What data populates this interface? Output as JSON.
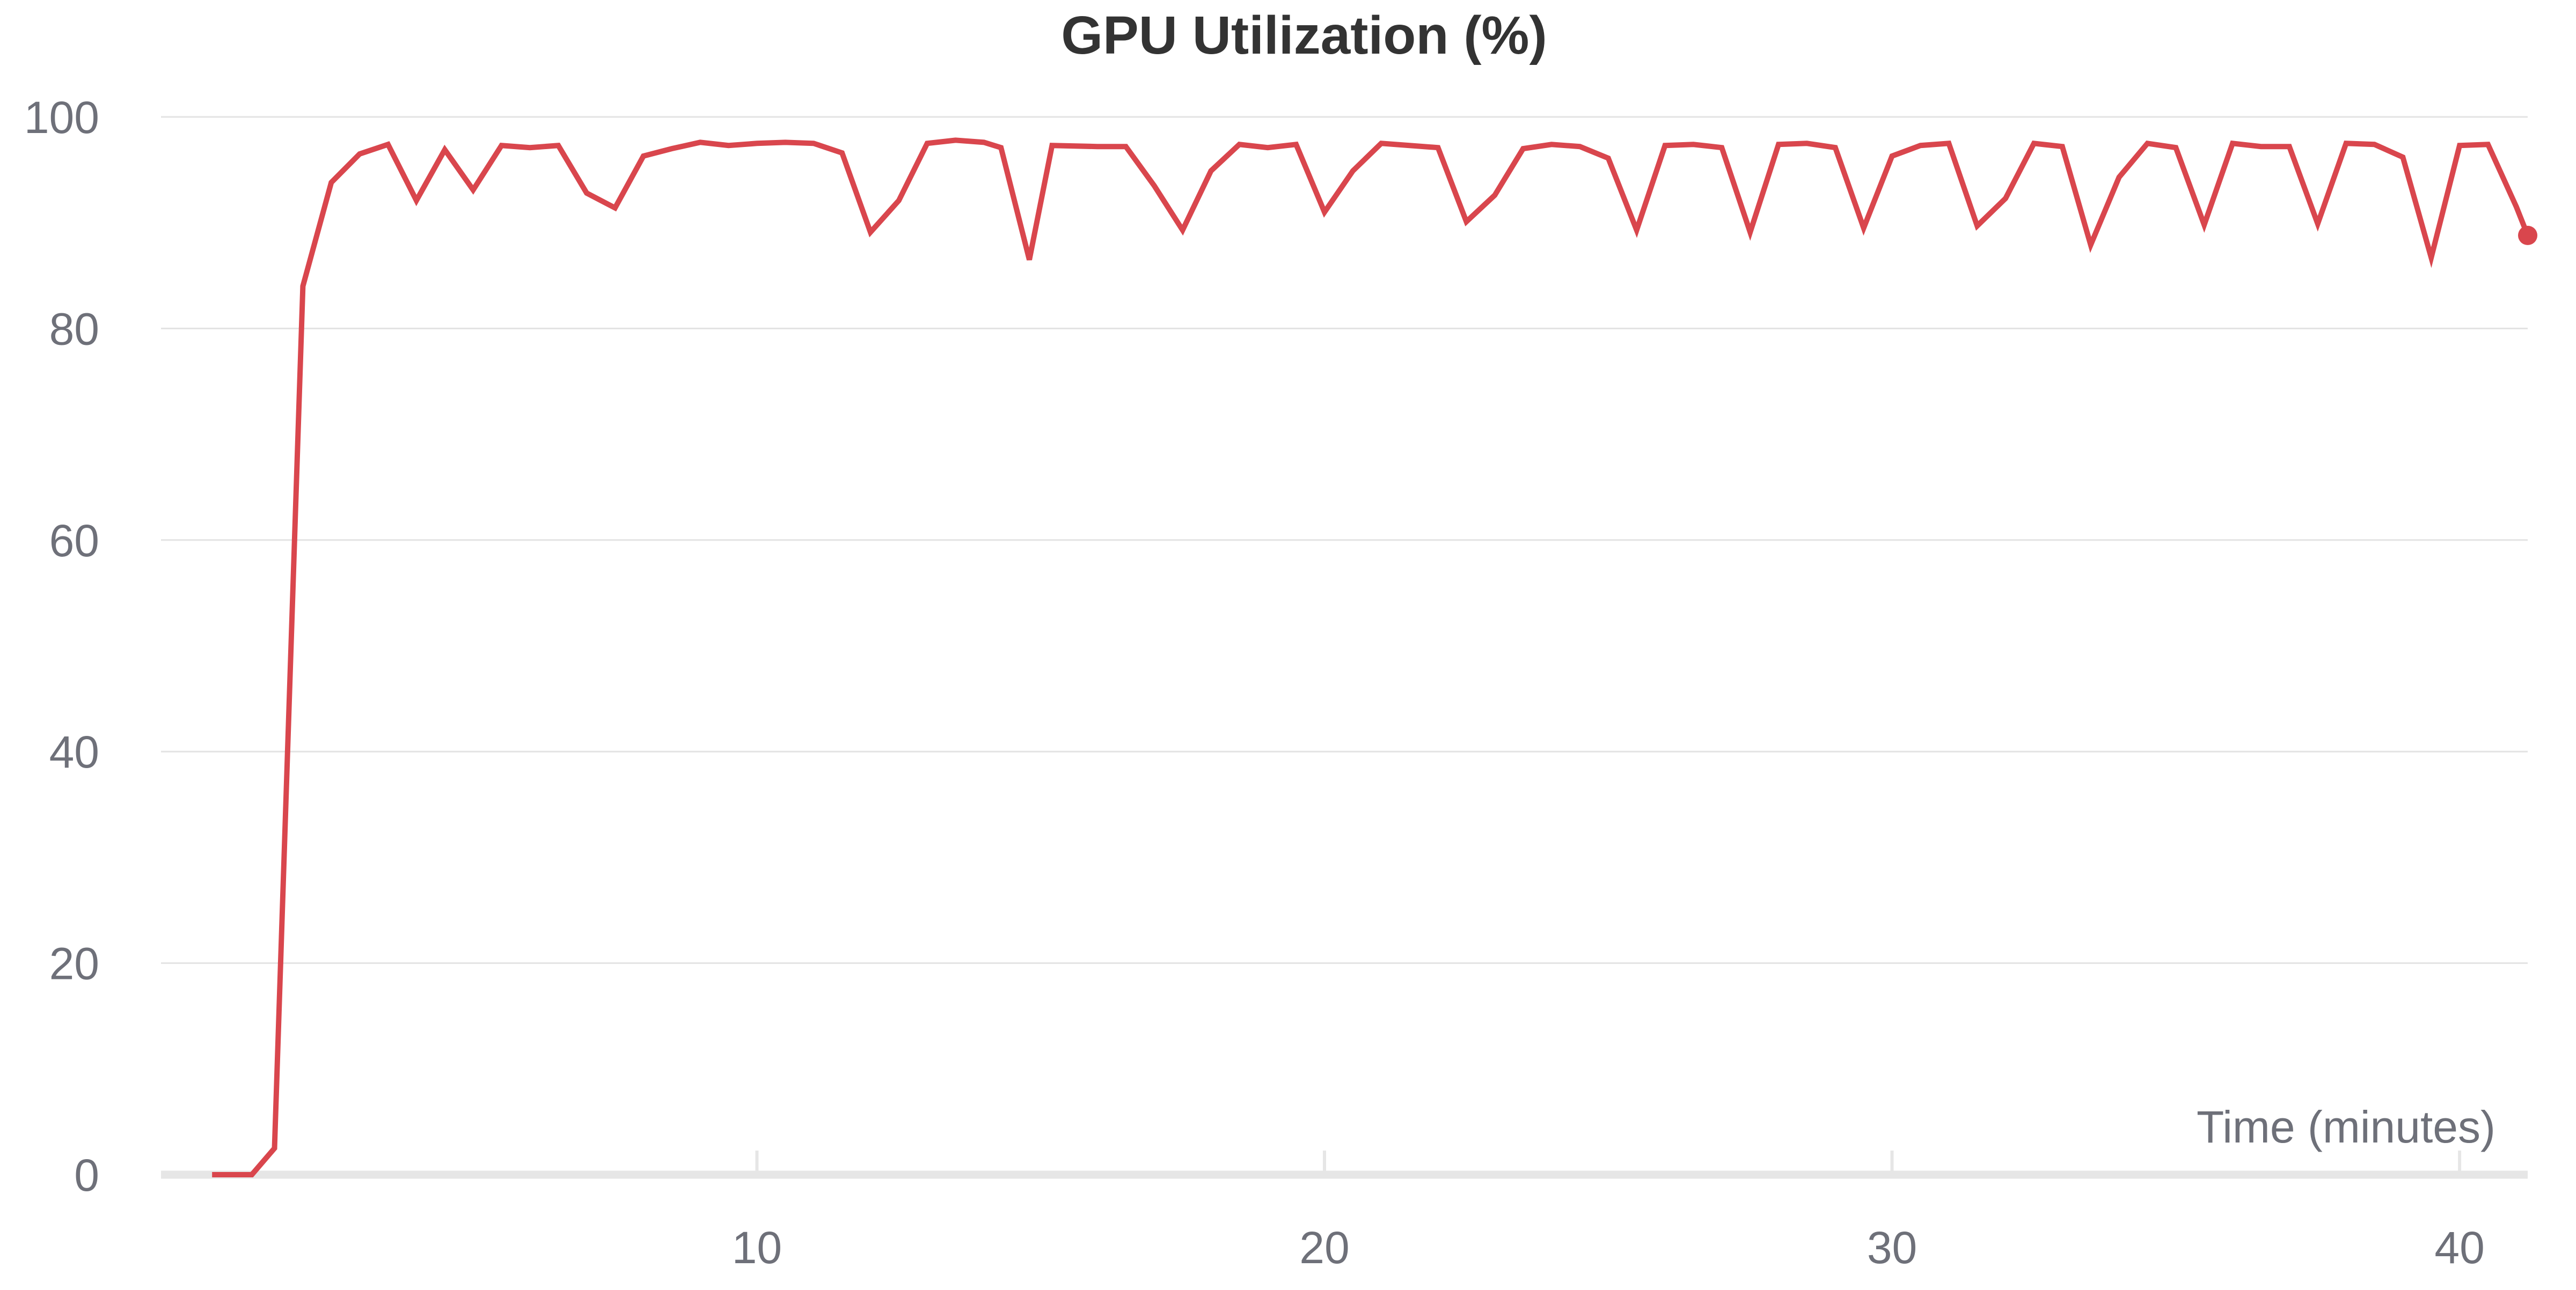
{
  "chart_data": {
    "type": "line",
    "title": "GPU Utilization (%)",
    "xlabel": "Time (minutes)",
    "ylabel": "",
    "xlim": [
      -0.5,
      41.2
    ],
    "ylim": [
      0,
      100
    ],
    "x_ticks": [
      10,
      20,
      30,
      40
    ],
    "y_ticks": [
      0,
      20,
      40,
      60,
      80,
      100
    ],
    "grid": true,
    "colors": {
      "series": "#d9464d",
      "grid": "#e3e3e3",
      "axis": "#e6e6e6",
      "tick_label": "#6e7079",
      "title": "#333333"
    },
    "series": [
      {
        "x": [
          0.4,
          0.6,
          1.1,
          1.5,
          2.0,
          2.5,
          3.0,
          3.5,
          4.0,
          4.5,
          5.0,
          5.5,
          6.0,
          6.5,
          7.0,
          7.5,
          8.0,
          8.5,
          9.0,
          9.5,
          10.0,
          10.5,
          11.0,
          11.5,
          12.0,
          12.5,
          13.0,
          13.5,
          14.0,
          14.3,
          14.8,
          15.2,
          16.0,
          16.5,
          17.0,
          17.5,
          18.0,
          18.5,
          19.0,
          19.5,
          20.0,
          20.5,
          21.0,
          21.5,
          22.0,
          22.5,
          23.0,
          23.5,
          24.0,
          24.5,
          25.0,
          25.5,
          26.0,
          26.5,
          27.0,
          27.5,
          28.0,
          28.5,
          29.0,
          29.5,
          30.0,
          30.5,
          31.0,
          31.5,
          32.0,
          32.5,
          33.0,
          33.5,
          34.0,
          34.5,
          35.0,
          35.5,
          36.0,
          36.5,
          37.0,
          37.5,
          38.0,
          38.5,
          39.0,
          39.5,
          40.0,
          40.5,
          41.0,
          41.2
        ],
        "y": [
          0,
          0,
          0,
          2.5,
          84,
          93.8,
          96.5,
          97.4,
          92.1,
          96.9,
          93.1,
          97.3,
          97.1,
          97.3,
          92.8,
          91.4,
          96.3,
          97.0,
          97.6,
          97.3,
          97.5,
          97.6,
          97.5,
          96.6,
          89.1,
          92.1,
          97.5,
          97.8,
          97.6,
          97.1,
          86.5,
          97.3,
          97.2,
          97.2,
          93.5,
          89.3,
          94.9,
          97.4,
          97.1,
          97.4,
          91.0,
          94.9,
          97.5,
          97.3,
          97.1,
          90.1,
          92.6,
          97.0,
          97.4,
          97.2,
          96.1,
          89.3,
          97.3,
          97.4,
          97.1,
          89.1,
          97.4,
          97.5,
          97.1,
          89.5,
          96.3,
          97.3,
          97.5,
          89.7,
          92.3,
          97.5,
          97.2,
          87.9,
          94.3,
          97.5,
          97.1,
          89.8,
          97.5,
          97.2,
          97.2,
          89.9,
          97.5,
          97.4,
          96.2,
          86.7,
          97.3,
          97.4,
          91.5,
          88.8
        ]
      }
    ]
  }
}
